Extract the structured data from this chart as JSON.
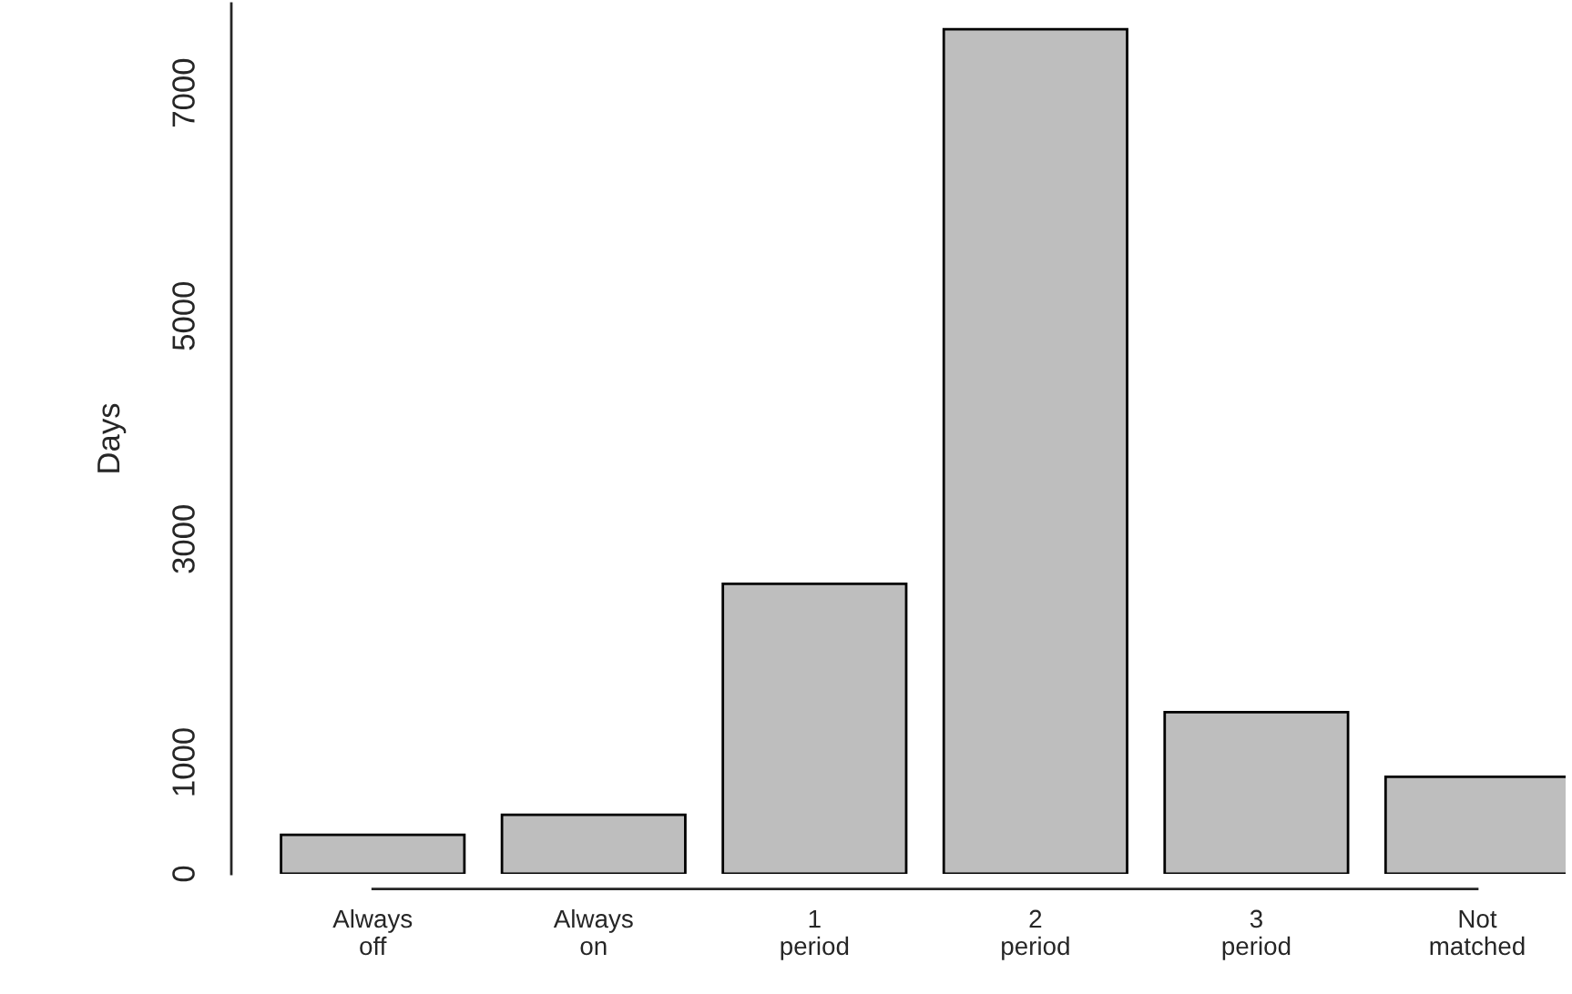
{
  "chart_data": {
    "type": "bar",
    "ylabel": "Days",
    "categories": [
      "Always\noff",
      "Always\non",
      "1\nperiod",
      "2\nperiod",
      "3\nperiod",
      "Not\nmatched"
    ],
    "values": [
      350,
      530,
      2600,
      7570,
      1450,
      870
    ],
    "color": "#bebebe",
    "ylim": [
      0,
      7800
    ],
    "yticks": [
      0,
      1000,
      3000,
      5000,
      7000
    ],
    "grid": false
  }
}
